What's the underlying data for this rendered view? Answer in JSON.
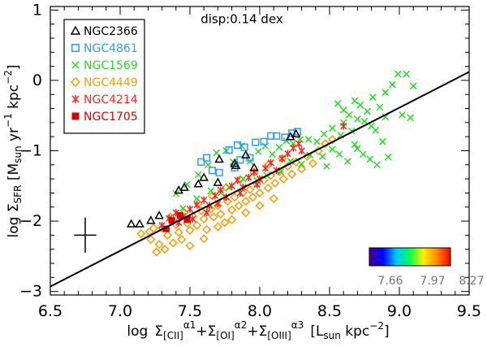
{
  "chart_data": {
    "type": "scatter",
    "xlabel": "log Σ[CII]^α1+Σ[OI]^α2+Σ[OIII]^α3 [Lsun kpc^-2]",
    "ylabel": "log ΣSFR [Msun yr^-1 kpc^-2]",
    "xlim": [
      6.5,
      9.5
    ],
    "ylim": [
      -3.05,
      1.05
    ],
    "x_ticks": [
      "6.5",
      "7.0",
      "7.5",
      "8.0",
      "8.5",
      "9.0",
      "9.5"
    ],
    "y_ticks": [
      "1",
      "0",
      "−1",
      "−2",
      "−3"
    ],
    "annotation": "disp:0.14 dex",
    "xlabel_parts": {
      "log": "log",
      "sigma": "Σ",
      "cii": "[CII]",
      "a1": "α1",
      "plus1": "+",
      "oi": "[OI]",
      "a2": "α2",
      "plus2": "+",
      "oiii": "[OIII]",
      "a3": "α3",
      "unit_open": "[L",
      "unit_sub": "sun",
      "unit_mid": " kpc",
      "unit_exp": "−2",
      "unit_close": "]"
    },
    "ylabel_parts": {
      "log": "log Σ",
      "sub": "SFR",
      "unit_open": " [M",
      "unit_sub": "sun",
      "unit_yr": " yr",
      "unit_yr_exp": "−1",
      "unit_kpc": " kpc",
      "unit_kpc_exp": "−2",
      "unit_close": "]"
    },
    "fit_line": {
      "x": [
        6.5,
        9.5
      ],
      "y": [
        -2.93,
        0.12
      ]
    },
    "error_bar": {
      "x": 6.75,
      "y": -2.2,
      "xerr": 0.08,
      "yerr": 0.25
    },
    "colorbar": {
      "colors": [
        "#4b0082",
        "#0000ff",
        "#00c8ff",
        "#00ff55",
        "#ffee00",
        "#ff8800",
        "#ff0000"
      ],
      "tick_labels": [
        "7.66",
        "7.97",
        "8.27"
      ]
    },
    "series": [
      {
        "name": "NGC2366",
        "marker": "triangle",
        "color": "#000000",
        "points": [
          [
            7.08,
            -2.04
          ],
          [
            7.14,
            -2.04
          ],
          [
            7.22,
            -1.99
          ],
          [
            7.28,
            -1.92
          ],
          [
            7.42,
            -1.56
          ],
          [
            7.46,
            -1.52
          ],
          [
            7.56,
            -1.47
          ],
          [
            7.6,
            -1.38
          ],
          [
            7.71,
            -1.12
          ],
          [
            7.83,
            -1.21
          ],
          [
            7.82,
            -1.18
          ],
          [
            7.9,
            -1.06
          ],
          [
            7.96,
            -1.24
          ],
          [
            8.26,
            -0.76
          ],
          [
            8.22,
            -0.8
          ],
          [
            7.7,
            -1.45
          ]
        ]
      },
      {
        "name": "NGC4861",
        "marker": "square",
        "color": "#3399ff",
        "points": [
          [
            7.58,
            -1.16
          ],
          [
            7.62,
            -1.1
          ],
          [
            7.66,
            -1.28
          ],
          [
            7.71,
            -1.31
          ],
          [
            7.78,
            -0.99
          ],
          [
            7.84,
            -0.92
          ],
          [
            7.89,
            -0.95
          ],
          [
            7.97,
            -0.88
          ],
          [
            8.03,
            -0.87
          ],
          [
            8.08,
            -0.79
          ],
          [
            8.12,
            -0.79
          ],
          [
            8.18,
            -0.81
          ],
          [
            8.23,
            -0.75
          ],
          [
            8.27,
            -0.73
          ],
          [
            7.82,
            -1.24
          ],
          [
            7.86,
            -1.13
          ],
          [
            7.93,
            -1.1
          ]
        ]
      },
      {
        "name": "NGC1569",
        "marker": "x",
        "color": "#22dd22",
        "points": [
          [
            7.4,
            -1.61
          ],
          [
            7.48,
            -1.48
          ],
          [
            7.56,
            -1.34
          ],
          [
            7.63,
            -1.2
          ],
          [
            7.69,
            -1.03
          ],
          [
            7.76,
            -1.0
          ],
          [
            7.81,
            -1.16
          ],
          [
            7.87,
            -0.93
          ],
          [
            7.93,
            -1.15
          ],
          [
            7.99,
            -1.01
          ],
          [
            8.04,
            -0.93
          ],
          [
            8.09,
            -1.05
          ],
          [
            8.14,
            -0.95
          ],
          [
            8.19,
            -0.86
          ],
          [
            8.24,
            -0.9
          ],
          [
            8.29,
            -0.84
          ],
          [
            8.35,
            -0.84
          ],
          [
            8.41,
            -0.87
          ],
          [
            8.46,
            -0.76
          ],
          [
            8.52,
            -0.68
          ],
          [
            8.56,
            -0.33
          ],
          [
            8.6,
            -0.42
          ],
          [
            8.64,
            -0.49
          ],
          [
            8.68,
            -0.29
          ],
          [
            8.72,
            -0.35
          ],
          [
            8.77,
            -0.44
          ],
          [
            8.81,
            -0.24
          ],
          [
            8.86,
            -0.38
          ],
          [
            8.9,
            -0.17
          ],
          [
            8.95,
            -0.06
          ],
          [
            8.99,
            0.09
          ],
          [
            9.05,
            0.09
          ],
          [
            9.1,
            -0.08
          ],
          [
            8.6,
            -0.6
          ],
          [
            8.66,
            -0.72
          ],
          [
            8.7,
            -0.97
          ],
          [
            8.74,
            -1.05
          ],
          [
            8.79,
            -1.12
          ],
          [
            8.84,
            -1.2
          ],
          [
            8.88,
            -0.87
          ],
          [
            8.92,
            -1.09
          ],
          [
            8.52,
            -0.98
          ],
          [
            8.48,
            -1.22
          ],
          [
            8.45,
            -1.08
          ],
          [
            8.57,
            -1.05
          ],
          [
            8.63,
            -1.15
          ],
          [
            8.68,
            -0.91
          ],
          [
            8.36,
            -1.06
          ],
          [
            8.3,
            -1.19
          ],
          [
            8.22,
            -1.15
          ],
          [
            8.15,
            -1.3
          ],
          [
            8.05,
            -1.35
          ],
          [
            7.98,
            -1.42
          ],
          [
            7.88,
            -1.4
          ],
          [
            7.78,
            -1.52
          ],
          [
            7.72,
            -1.6
          ],
          [
            7.65,
            -1.57
          ],
          [
            7.55,
            -1.68
          ],
          [
            7.45,
            -1.82
          ],
          [
            8.83,
            -0.71
          ],
          [
            8.75,
            -0.58
          ],
          [
            9.02,
            -0.49
          ],
          [
            9.08,
            -0.53
          ],
          [
            8.9,
            -0.52
          ],
          [
            8.58,
            -0.78
          ],
          [
            8.8,
            -0.65
          ],
          [
            8.7,
            -0.55
          ]
        ]
      },
      {
        "name": "NGC4449",
        "marker": "diamond",
        "color": "#ff9900",
        "points": [
          [
            7.15,
            -2.18
          ],
          [
            7.22,
            -2.26
          ],
          [
            7.28,
            -2.33
          ],
          [
            7.3,
            -2.1
          ],
          [
            7.34,
            -2.2
          ],
          [
            7.38,
            -2.31
          ],
          [
            7.4,
            -2.05
          ],
          [
            7.42,
            -2.16
          ],
          [
            7.44,
            -2.26
          ],
          [
            7.48,
            -2.03
          ],
          [
            7.5,
            -2.13
          ],
          [
            7.52,
            -1.93
          ],
          [
            7.55,
            -2.06
          ],
          [
            7.58,
            -1.85
          ],
          [
            7.6,
            -1.97
          ],
          [
            7.62,
            -2.12
          ],
          [
            7.65,
            -1.83
          ],
          [
            7.67,
            -1.94
          ],
          [
            7.7,
            -1.78
          ],
          [
            7.72,
            -1.9
          ],
          [
            7.75,
            -2.02
          ],
          [
            7.77,
            -1.72
          ],
          [
            7.8,
            -1.84
          ],
          [
            7.82,
            -1.66
          ],
          [
            7.85,
            -1.78
          ],
          [
            7.88,
            -1.6
          ],
          [
            7.9,
            -1.72
          ],
          [
            7.93,
            -1.55
          ],
          [
            7.95,
            -1.66
          ],
          [
            7.98,
            -1.47
          ],
          [
            8.0,
            -1.6
          ],
          [
            8.03,
            -1.42
          ],
          [
            8.06,
            -1.53
          ],
          [
            8.08,
            -1.35
          ],
          [
            8.11,
            -1.46
          ],
          [
            8.14,
            -1.3
          ],
          [
            8.17,
            -1.4
          ],
          [
            8.2,
            -1.22
          ],
          [
            8.23,
            -1.33
          ],
          [
            8.26,
            -1.16
          ],
          [
            8.3,
            -1.26
          ],
          [
            8.34,
            -1.08
          ],
          [
            8.38,
            -1.18
          ],
          [
            8.42,
            -1.0
          ],
          [
            8.47,
            -0.9
          ],
          [
            8.52,
            -0.84
          ],
          [
            7.36,
            -1.94
          ],
          [
            7.46,
            -1.88
          ],
          [
            7.56,
            -1.75
          ],
          [
            7.66,
            -1.64
          ],
          [
            7.76,
            -1.52
          ],
          [
            7.86,
            -1.41
          ],
          [
            7.96,
            -1.31
          ],
          [
            8.06,
            -1.2
          ],
          [
            8.16,
            -1.11
          ],
          [
            7.24,
            -2.1
          ],
          [
            7.32,
            -2.4
          ],
          [
            7.26,
            -2.44
          ],
          [
            7.21,
            -2.15
          ],
          [
            7.5,
            -2.35
          ],
          [
            7.6,
            -2.25
          ],
          [
            7.7,
            -2.08
          ],
          [
            7.8,
            -1.98
          ],
          [
            7.9,
            -1.88
          ],
          [
            8.0,
            -1.78
          ],
          [
            8.1,
            -1.68
          ]
        ]
      },
      {
        "name": "NGC4214",
        "marker": "asterisk",
        "color": "#ff2222",
        "points": [
          [
            7.3,
            -2.06
          ],
          [
            7.35,
            -1.96
          ],
          [
            7.4,
            -1.88
          ],
          [
            7.45,
            -1.93
          ],
          [
            7.5,
            -1.83
          ],
          [
            7.55,
            -1.77
          ],
          [
            7.6,
            -1.7
          ],
          [
            7.64,
            -1.78
          ],
          [
            7.68,
            -1.64
          ],
          [
            7.72,
            -1.56
          ],
          [
            7.76,
            -1.66
          ],
          [
            7.8,
            -1.5
          ],
          [
            7.84,
            -1.42
          ],
          [
            7.88,
            -1.52
          ],
          [
            7.92,
            -1.38
          ],
          [
            7.96,
            -1.3
          ],
          [
            8.0,
            -1.4
          ],
          [
            8.04,
            -1.25
          ],
          [
            8.08,
            -1.17
          ],
          [
            8.12,
            -1.28
          ],
          [
            8.16,
            -1.11
          ],
          [
            8.2,
            -1.04
          ],
          [
            8.24,
            -0.96
          ],
          [
            8.28,
            -0.9
          ],
          [
            8.3,
            -1.0
          ],
          [
            8.6,
            -0.65
          ],
          [
            7.52,
            -1.97
          ],
          [
            7.62,
            -1.88
          ],
          [
            7.42,
            -2.02
          ],
          [
            7.7,
            -1.75
          ],
          [
            7.86,
            -1.6
          ],
          [
            7.98,
            -1.48
          ]
        ]
      },
      {
        "name": "NGC1705",
        "marker": "filled-square",
        "color": "#dd0000",
        "points": [
          [
            7.33,
            -2.11
          ],
          [
            7.37,
            -1.99
          ],
          [
            7.43,
            -1.92
          ],
          [
            7.48,
            -1.98
          ]
        ]
      }
    ]
  }
}
